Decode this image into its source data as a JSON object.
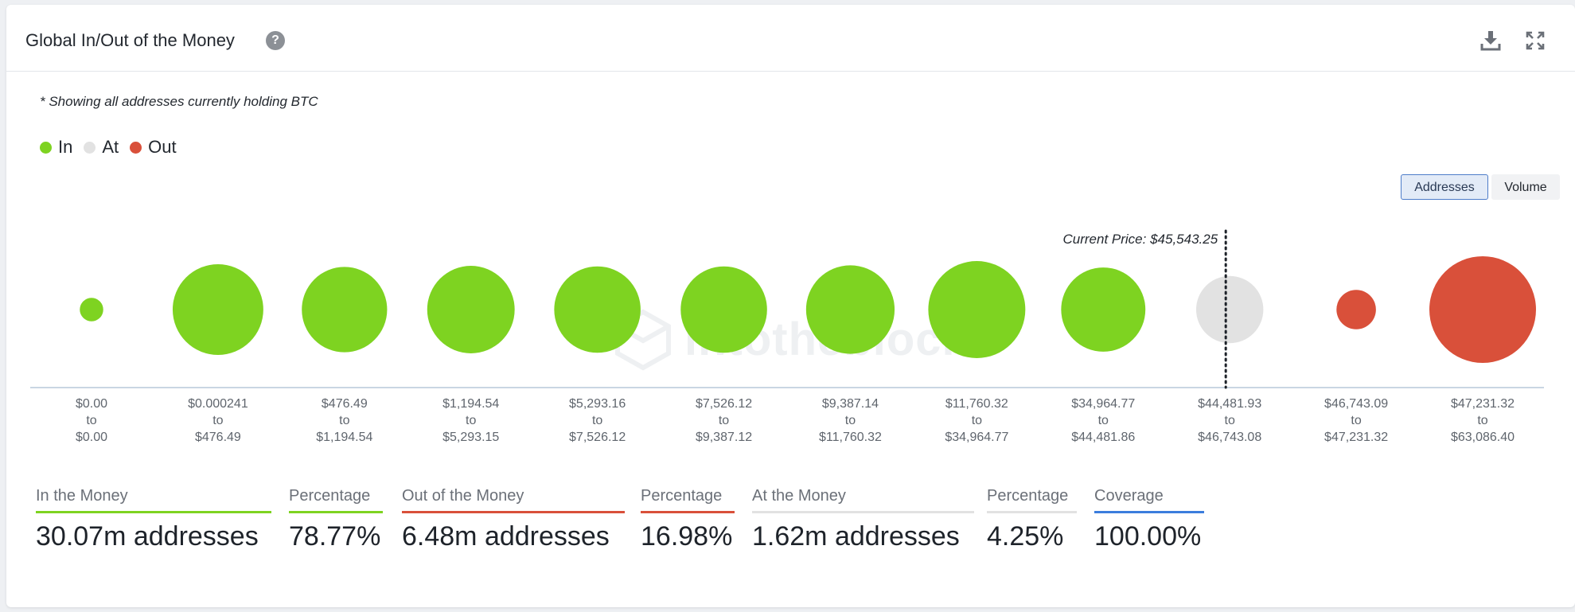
{
  "header": {
    "title": "Global In/Out of the Money",
    "help_icon": "question-circle-icon",
    "download_icon": "download-icon",
    "fullscreen_icon": "expand-icon"
  },
  "note": "* Showing all addresses currently holding BTC",
  "legend": [
    {
      "label": "In",
      "color": "#7ed321"
    },
    {
      "label": "At",
      "color": "#e2e2e2"
    },
    {
      "label": "Out",
      "color": "#d9503a"
    }
  ],
  "toggle": {
    "addresses_label": "Addresses",
    "volume_label": "Volume",
    "selected": "Addresses"
  },
  "watermark": "intotheblock",
  "chart_data": {
    "type": "bubble",
    "current_price_label": "Current Price: $45,543.25",
    "current_price": 45543.25,
    "size_metric": "addresses (relative, not labeled)",
    "buckets": [
      {
        "low": "$0.00",
        "to": "to",
        "high": "$0.00",
        "status": "in",
        "relative_size": 0.22
      },
      {
        "low": "$0.000241",
        "to": "to",
        "high": "$476.49",
        "status": "in",
        "relative_size": 0.85
      },
      {
        "low": "$476.49",
        "to": "to",
        "high": "$1,194.54",
        "status": "in",
        "relative_size": 0.8
      },
      {
        "low": "$1,194.54",
        "to": "to",
        "high": "$5,293.15",
        "status": "in",
        "relative_size": 0.82
      },
      {
        "low": "$5,293.16",
        "to": "to",
        "high": "$7,526.12",
        "status": "in",
        "relative_size": 0.81
      },
      {
        "low": "$7,526.12",
        "to": "to",
        "high": "$9,387.12",
        "status": "in",
        "relative_size": 0.81
      },
      {
        "low": "$9,387.14",
        "to": "to",
        "high": "$11,760.32",
        "status": "in",
        "relative_size": 0.83
      },
      {
        "low": "$11,760.32",
        "to": "to",
        "high": "$34,964.77",
        "status": "in",
        "relative_size": 0.91
      },
      {
        "low": "$34,964.77",
        "to": "to",
        "high": "$44,481.86",
        "status": "in",
        "relative_size": 0.79
      },
      {
        "low": "$44,481.93",
        "to": "to",
        "high": "$46,743.08",
        "status": "at",
        "relative_size": 0.63
      },
      {
        "low": "$46,743.09",
        "to": "to",
        "high": "$47,231.32",
        "status": "out",
        "relative_size": 0.37
      },
      {
        "low": "$47,231.32",
        "to": "to",
        "high": "$63,086.40",
        "status": "out",
        "relative_size": 1.0
      }
    ],
    "current_price_bucket_index": 9,
    "colors": {
      "in": "#7ed321",
      "at": "#e2e2e2",
      "out": "#d9503a"
    }
  },
  "stats": [
    {
      "label": "In the Money",
      "value": "30.07m addresses",
      "color": "#7ed321"
    },
    {
      "label": "Percentage",
      "value": "78.77%",
      "color": "#7ed321"
    },
    {
      "label": "Out of the Money",
      "value": "6.48m addresses",
      "color": "#d9503a"
    },
    {
      "label": "Percentage",
      "value": "16.98%",
      "color": "#d9503a"
    },
    {
      "label": "At the Money",
      "value": "1.62m addresses",
      "color": "#e2e2e2"
    },
    {
      "label": "Percentage",
      "value": "4.25%",
      "color": "#e2e2e2"
    },
    {
      "label": "Coverage",
      "value": "100.00%",
      "color": "#3b7ddd"
    }
  ]
}
